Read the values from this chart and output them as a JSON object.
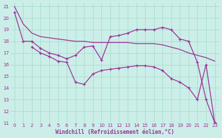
{
  "background_color": "#cceee8",
  "line_color": "#993399",
  "grid_color": "#aaddcc",
  "xlabel": "Windchill (Refroidissement éolien,°C)",
  "xlim": [
    -0.5,
    23.5
  ],
  "ylim": [
    11,
    21.3
  ],
  "yticks": [
    11,
    12,
    13,
    14,
    15,
    16,
    17,
    18,
    19,
    20,
    21
  ],
  "xticks": [
    0,
    1,
    2,
    3,
    4,
    5,
    6,
    7,
    8,
    9,
    10,
    11,
    12,
    13,
    14,
    15,
    16,
    17,
    18,
    19,
    20,
    21,
    22,
    23
  ],
  "lineA_x": [
    0,
    1,
    2,
    3,
    4,
    5,
    6,
    7,
    8,
    9,
    10,
    11,
    12,
    13,
    14,
    15,
    16,
    17,
    18,
    19,
    20,
    21,
    22,
    23
  ],
  "lineA_y": [
    21.0,
    19.5,
    18.7,
    18.4,
    18.3,
    18.2,
    18.1,
    18.0,
    18.0,
    17.9,
    17.9,
    17.9,
    17.9,
    17.9,
    17.8,
    17.8,
    17.8,
    17.7,
    17.5,
    17.3,
    17.0,
    16.8,
    16.6,
    16.3
  ],
  "lineB_x": [
    0,
    1,
    2,
    3,
    4,
    5,
    6,
    7,
    8,
    9,
    10,
    11,
    12,
    13,
    14,
    15,
    16,
    17,
    18,
    19,
    20,
    21,
    22,
    23
  ],
  "lineB_y": [
    20.5,
    18.0,
    18.0,
    17.4,
    17.0,
    16.8,
    16.5,
    16.8,
    17.5,
    17.6,
    16.4,
    18.4,
    18.5,
    18.7,
    19.0,
    19.0,
    19.0,
    19.2,
    19.0,
    18.2,
    18.0,
    16.2,
    13.0,
    11.0
  ],
  "lineC_x": [
    2,
    3,
    4,
    5,
    6,
    7,
    8,
    9,
    10,
    11,
    12,
    13,
    14,
    15,
    16,
    17,
    18,
    19,
    20,
    21,
    22,
    23
  ],
  "lineC_y": [
    17.5,
    17.0,
    16.7,
    16.3,
    16.2,
    14.5,
    14.3,
    15.2,
    15.5,
    15.6,
    15.7,
    15.8,
    15.9,
    15.9,
    15.8,
    15.5,
    14.8,
    14.5,
    14.0,
    13.0,
    16.0,
    11.0
  ]
}
